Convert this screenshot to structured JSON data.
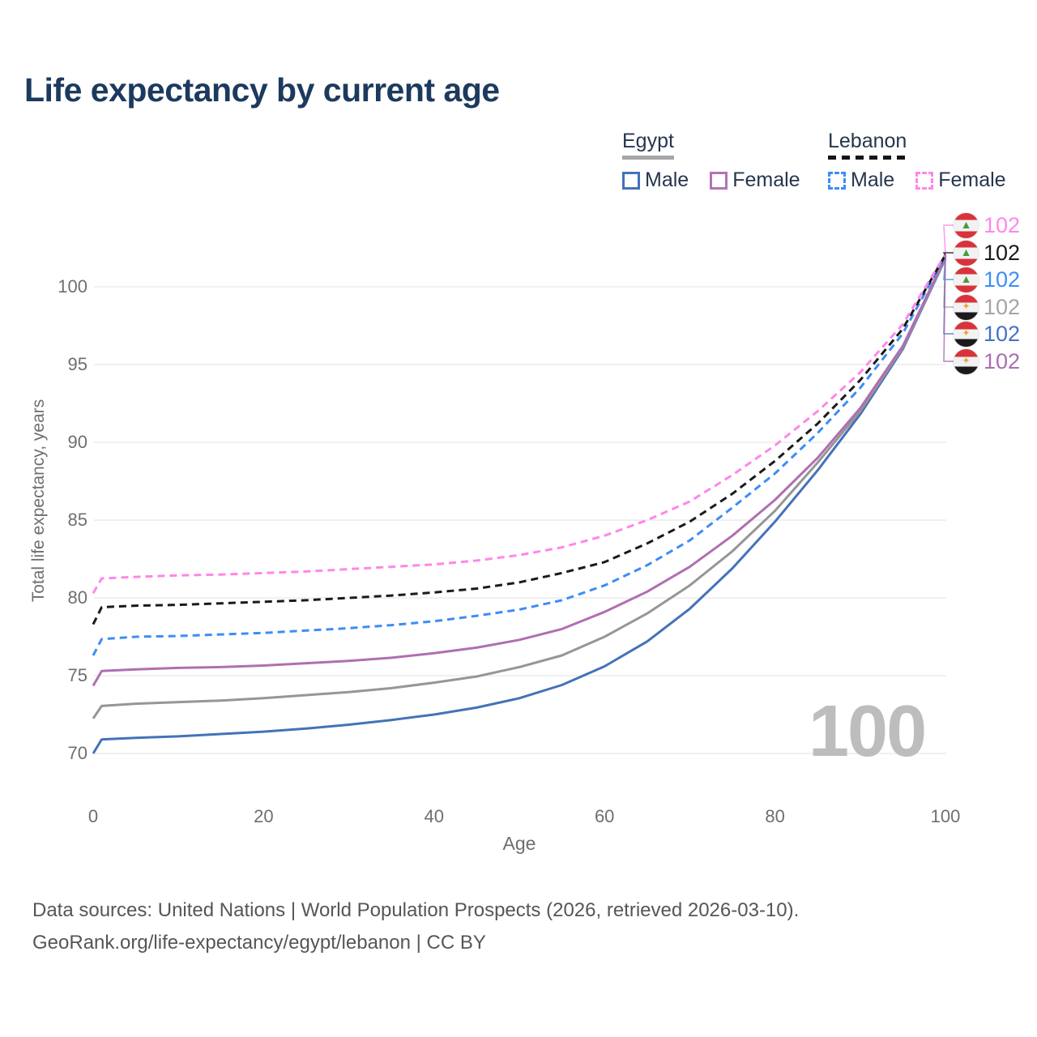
{
  "title": "Life expectancy by current age",
  "legend": {
    "groups": [
      {
        "label": "Egypt",
        "underline_color": "#a6a6a6",
        "underline_style": "solid",
        "items": [
          {
            "label": "Male",
            "color": "#4472b8",
            "dashed": false
          },
          {
            "label": "Female",
            "color": "#b473b4",
            "dashed": false
          }
        ]
      },
      {
        "label": "Lebanon",
        "underline_color": "#161616",
        "underline_style": "dashed",
        "items": [
          {
            "label": "Male",
            "color": "#3d8df5",
            "dashed": true
          },
          {
            "label": "Female",
            "color": "#ff86e9",
            "dashed": true
          }
        ]
      }
    ]
  },
  "chart_data": {
    "type": "line",
    "title": "Life expectancy by current age",
    "xlabel": "Age",
    "ylabel": "Total life expectancy, years",
    "xlim": [
      0,
      100
    ],
    "ylim": [
      68.5,
      103
    ],
    "x_ticks": [
      0,
      20,
      40,
      60,
      80,
      100
    ],
    "y_ticks": [
      70,
      75,
      80,
      85,
      90,
      95,
      100
    ],
    "grid": "horizontal",
    "legend_position": "top-right",
    "x": [
      0,
      1,
      5,
      10,
      15,
      20,
      25,
      30,
      35,
      40,
      45,
      50,
      55,
      60,
      65,
      70,
      75,
      80,
      85,
      90,
      95,
      100
    ],
    "series": [
      {
        "name": "Egypt Male",
        "color": "#4472b8",
        "dashed": false,
        "values": [
          70.0,
          70.9,
          71.0,
          71.1,
          71.25,
          71.4,
          71.6,
          71.85,
          72.15,
          72.5,
          72.95,
          73.55,
          74.4,
          75.6,
          77.2,
          79.3,
          81.9,
          84.9,
          88.2,
          91.8,
          96.0,
          101.8
        ]
      },
      {
        "name": "Egypt All",
        "color": "#969696",
        "dashed": false,
        "values": [
          72.25,
          73.05,
          73.2,
          73.3,
          73.4,
          73.55,
          73.75,
          73.95,
          74.2,
          74.55,
          74.95,
          75.55,
          76.3,
          77.5,
          79.0,
          80.8,
          83.0,
          85.6,
          88.7,
          92.0,
          96.1,
          101.85
        ]
      },
      {
        "name": "Egypt Female",
        "color": "#b06fb0",
        "dashed": false,
        "values": [
          74.35,
          75.3,
          75.4,
          75.5,
          75.55,
          75.65,
          75.8,
          75.95,
          76.15,
          76.45,
          76.8,
          77.3,
          78.0,
          79.1,
          80.4,
          82.0,
          84.0,
          86.3,
          89.0,
          92.2,
          96.2,
          101.9
        ]
      },
      {
        "name": "Lebanon Male",
        "color": "#3d8df5",
        "dashed": true,
        "values": [
          76.3,
          77.35,
          77.5,
          77.55,
          77.65,
          77.75,
          77.9,
          78.05,
          78.25,
          78.5,
          78.85,
          79.25,
          79.85,
          80.8,
          82.1,
          83.7,
          85.8,
          88.0,
          90.6,
          93.5,
          97.0,
          102.0
        ]
      },
      {
        "name": "Lebanon All",
        "color": "#1a1a1a",
        "dashed": true,
        "values": [
          78.3,
          79.4,
          79.5,
          79.55,
          79.65,
          79.75,
          79.85,
          80.0,
          80.15,
          80.35,
          80.6,
          81.0,
          81.6,
          82.3,
          83.5,
          84.9,
          86.7,
          88.8,
          91.2,
          94.0,
          97.3,
          102.05
        ]
      },
      {
        "name": "Lebanon Female",
        "color": "#ff86e9",
        "dashed": true,
        "values": [
          80.3,
          81.25,
          81.35,
          81.45,
          81.5,
          81.6,
          81.7,
          81.85,
          82.0,
          82.15,
          82.4,
          82.75,
          83.25,
          84.0,
          85.0,
          86.2,
          87.9,
          89.8,
          92.0,
          94.5,
          97.6,
          102.1
        ]
      }
    ],
    "end_labels": [
      {
        "value": "102",
        "color": "#ff86e9",
        "flag": "lebanon"
      },
      {
        "value": "102",
        "color": "#1a1a1a",
        "flag": "lebanon"
      },
      {
        "value": "102",
        "color": "#3d8df5",
        "flag": "lebanon"
      },
      {
        "value": "102",
        "color": "#a5a5a5",
        "flag": "egypt"
      },
      {
        "value": "102",
        "color": "#4472c4",
        "flag": "egypt"
      },
      {
        "value": "102",
        "color": "#a86fb0",
        "flag": "egypt"
      }
    ],
    "watermark": "100"
  },
  "icons": {
    "lebanon": "▲",
    "egypt": "✦"
  },
  "footer": {
    "line1": "Data sources: United Nations | World Population Prospects (2026, retrieved 2026-03-10).",
    "line2": "GeoRank.org/life-expectancy/egypt/lebanon | CC BY"
  }
}
